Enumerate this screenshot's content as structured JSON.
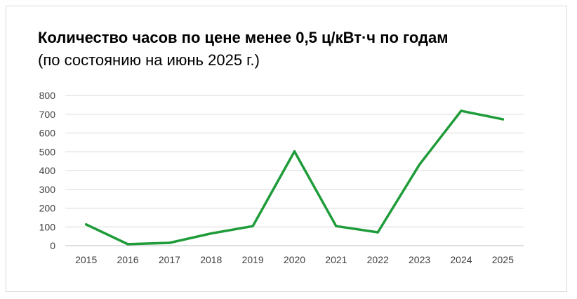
{
  "chart_data": {
    "type": "line",
    "title": "Количество часов по цене менее 0,5 ц/кВт·ч по годам",
    "subtitle": "(по состоянию на июнь 2025 г.)",
    "categories": [
      "2015",
      "2016",
      "2017",
      "2018",
      "2019",
      "2020",
      "2021",
      "2022",
      "2023",
      "2024",
      "2025"
    ],
    "series": [
      {
        "values": [
          113,
          8,
          15,
          65,
          104,
          502,
          104,
          71,
          432,
          718,
          673
        ]
      }
    ],
    "ylim": [
      0,
      800
    ],
    "yticks": [
      "0",
      "100",
      "200",
      "300",
      "400",
      "500",
      "600",
      "700",
      "800"
    ],
    "grid": true,
    "legend": "none",
    "colors": {
      "line": "#1f9c3a",
      "grid": "#d9d9d9",
      "axis": "#bfbfbf",
      "tick": "#404040"
    }
  }
}
